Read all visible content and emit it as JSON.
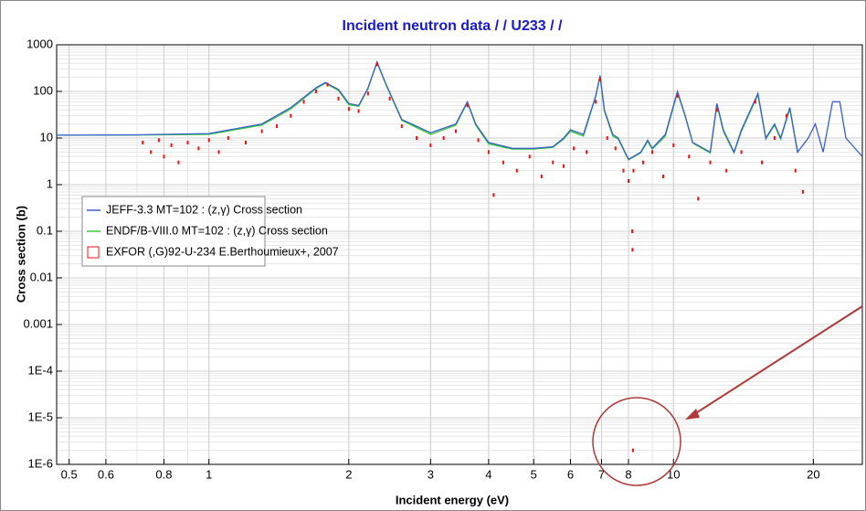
{
  "chart_data": {
    "type": "line",
    "title": "Incident neutron data / / U233 / /",
    "x_label": "Incident energy (eV)",
    "y_label": "Cross section (b)",
    "x_scale": "log",
    "y_scale": "log",
    "grid": true,
    "legend_position": "left",
    "xlim": [
      0.47,
      25.5
    ],
    "ylim": [
      1e-06,
      1000
    ],
    "xticks": [
      0.5,
      0.6,
      0.8,
      1,
      2,
      3,
      4,
      5,
      6,
      7,
      8,
      10,
      20
    ],
    "yticks": [
      {
        "value": 1000,
        "label": "1000"
      },
      {
        "value": 100,
        "label": "100"
      },
      {
        "value": 10,
        "label": "10"
      },
      {
        "value": 1,
        "label": "1"
      },
      {
        "value": 0.1,
        "label": "0.1"
      },
      {
        "value": 0.01,
        "label": "0.01"
      },
      {
        "value": 0.001,
        "label": "0.001"
      },
      {
        "value": 0.0001,
        "label": "1E-4"
      },
      {
        "value": 1e-05,
        "label": "1E-5"
      },
      {
        "value": 1e-06,
        "label": "1E-6"
      }
    ],
    "series": [
      {
        "name": "ENDF/B-VIII.0  MT=102 : (z,γ) Cross section",
        "color": "#33cc33",
        "kind": "line",
        "x": [
          0.47,
          0.7,
          1.0,
          1.3,
          1.5,
          1.7,
          1.78,
          1.9,
          2.0,
          2.1,
          2.2,
          2.3,
          2.4,
          2.6,
          3.0,
          3.4,
          3.6,
          3.75,
          4.0,
          4.5,
          5.0,
          5.5,
          5.8,
          6.0,
          6.4,
          6.8,
          6.95,
          7.1,
          7.4,
          7.6,
          8.0,
          8.5,
          8.8,
          9.0,
          9.6,
          10.2,
          10.6,
          11,
          12,
          12.4,
          12.8,
          13.5,
          14,
          15.2,
          15.8,
          16.5,
          17,
          17.8,
          18.5
        ],
        "values": [
          11.5,
          11.6,
          12,
          19,
          42,
          115,
          150,
          105,
          52,
          48,
          115,
          420,
          145,
          24,
          12,
          19,
          58,
          19,
          7.5,
          5.8,
          5.8,
          6.3,
          9.5,
          14,
          11,
          78,
          210,
          38,
          11,
          9.5,
          3.4,
          4.8,
          8.5,
          5.8,
          11,
          95,
          29,
          7.8,
          4.8,
          52,
          14,
          4.8,
          14,
          85,
          9.5,
          19,
          9.5,
          42,
          4.8
        ]
      },
      {
        "name": "JEFF-3.3  MT=102 : (z,γ) Cross section",
        "color": "#3a5fcd",
        "kind": "line",
        "x": [
          0.47,
          0.7,
          1.0,
          1.3,
          1.5,
          1.7,
          1.78,
          1.9,
          2.0,
          2.1,
          2.2,
          2.3,
          2.4,
          2.6,
          3.0,
          3.4,
          3.6,
          3.75,
          4.0,
          4.5,
          5.0,
          5.5,
          5.8,
          6.0,
          6.4,
          6.8,
          6.95,
          7.1,
          7.4,
          7.6,
          8.0,
          8.5,
          8.8,
          9.0,
          9.6,
          10.2,
          10.6,
          11,
          12,
          12.4,
          12.8,
          13.5,
          14,
          15.2,
          15.8,
          16.5,
          17,
          17.8,
          18.5,
          19.5,
          20.2,
          21,
          22,
          22.8,
          23.5,
          25.5
        ],
        "values": [
          11.5,
          11.7,
          12.5,
          20,
          45,
          120,
          155,
          110,
          55,
          50,
          120,
          430,
          150,
          25,
          13,
          20,
          60,
          20,
          8,
          6,
          6,
          6.5,
          10,
          15,
          12,
          80,
          220,
          40,
          12,
          10,
          3.5,
          5,
          9,
          6,
          12,
          100,
          30,
          8,
          5,
          55,
          15,
          5,
          15,
          90,
          10,
          20,
          10,
          45,
          5,
          10,
          20,
          5,
          60,
          60,
          10,
          4
        ]
      },
      {
        "name": "EXFOR  (,G)92-U-234 E.Berthoumieux+, 2007",
        "color": "#ee1111",
        "kind": "scatter",
        "x": [
          0.72,
          0.75,
          0.78,
          0.8,
          0.83,
          0.86,
          0.9,
          0.95,
          1.0,
          1.05,
          1.1,
          1.2,
          1.3,
          1.4,
          1.5,
          1.6,
          1.7,
          1.8,
          1.9,
          2.0,
          2.1,
          2.2,
          2.3,
          2.45,
          2.6,
          2.8,
          3.0,
          3.2,
          3.4,
          3.6,
          3.8,
          4.0,
          4.1,
          4.3,
          4.6,
          4.9,
          5.2,
          5.5,
          5.8,
          6.1,
          6.5,
          6.8,
          6.95,
          7.2,
          7.5,
          7.8,
          8.0,
          8.15,
          8.16,
          8.18,
          8.2,
          8.6,
          9.0,
          9.5,
          10.0,
          10.2,
          10.8,
          11.3,
          12.0,
          12.4,
          13.0,
          14.0,
          15.0,
          15.5,
          16.5,
          17.5,
          18.3,
          19.0
        ],
        "values": [
          8,
          5,
          9,
          4,
          7,
          3,
          8,
          6,
          9,
          5,
          10,
          8,
          14,
          18,
          30,
          60,
          100,
          140,
          70,
          42,
          38,
          90,
          380,
          70,
          18,
          10,
          7,
          10,
          14,
          50,
          9,
          5,
          0.6,
          3,
          2,
          4,
          1.5,
          3,
          2.5,
          6,
          5,
          60,
          180,
          10,
          6,
          2,
          1.2,
          0.1,
          0.04,
          2e-06,
          2,
          3,
          5,
          1.5,
          7,
          80,
          4,
          0.5,
          3,
          40,
          2,
          5,
          60,
          3,
          10,
          30,
          2,
          0.7
        ]
      }
    ]
  }
}
